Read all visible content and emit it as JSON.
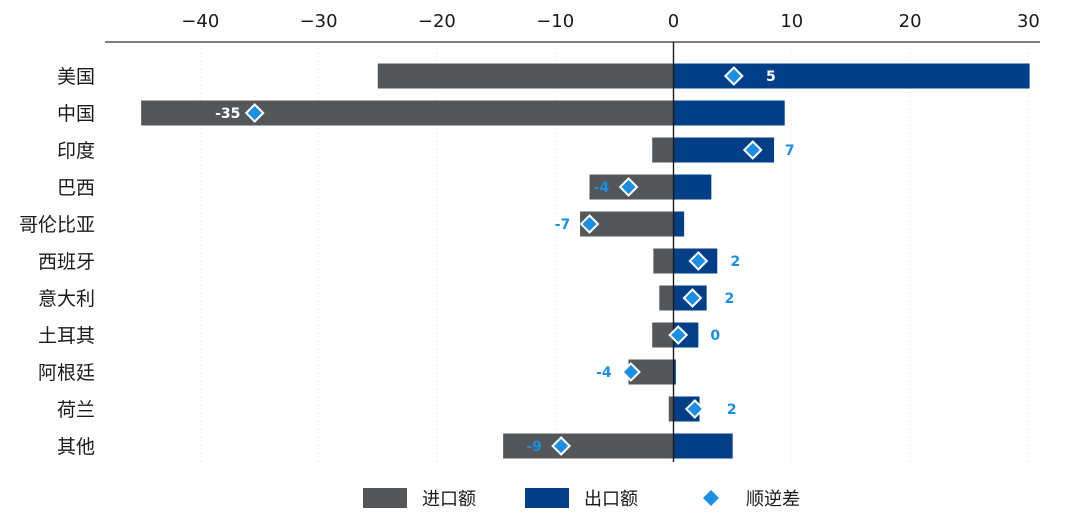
{
  "chart_data": {
    "type": "bar",
    "orientation": "horizontal",
    "title": "",
    "xlim": [
      -45,
      31
    ],
    "xticks": [
      -40,
      -30,
      -20,
      -10,
      0,
      10,
      20,
      30
    ],
    "xtick_labels": [
      "−40",
      "−30",
      "−20",
      "−10",
      "0",
      "10",
      "20",
      "30"
    ],
    "grid": true,
    "legend_position": "bottom",
    "categories": [
      "美国",
      "中国",
      "印度",
      "巴西",
      "哥伦比亚",
      "西班牙",
      "意大利",
      "土耳其",
      "阿根廷",
      "荷兰",
      "其他"
    ],
    "series": [
      {
        "name": "进口额",
        "kind": "bar",
        "color": "#53575a",
        "values": [
          -25,
          -45,
          -1.8,
          -7.1,
          -7.9,
          -1.7,
          -1.2,
          -1.8,
          -3.8,
          -0.4,
          -14.4
        ]
      },
      {
        "name": "出口额",
        "kind": "bar",
        "color": "#003f87",
        "values": [
          30.1,
          9.4,
          8.5,
          3.2,
          0.9,
          3.7,
          2.8,
          2.1,
          0.2,
          2.2,
          5.0
        ]
      },
      {
        "name": "顺逆差",
        "kind": "marker",
        "color": "#1a8fe3",
        "values": [
          5.1,
          -35.4,
          6.7,
          -3.8,
          -7.1,
          2.1,
          1.6,
          0.4,
          -3.6,
          1.8,
          -9.5
        ]
      }
    ],
    "data_labels": [
      "5",
      "-35",
      "7",
      "-4",
      "-7",
      "2",
      "2",
      "0",
      "-4",
      "2",
      "-9"
    ],
    "data_label_colors": [
      "#ffffff",
      "#ffffff",
      "#1a8fe3",
      "#1a8fe3",
      "#1a8fe3",
      "#1a8fe3",
      "#1a8fe3",
      "#1a8fe3",
      "#1a8fe3",
      "#1a8fe3",
      "#1a8fe3"
    ],
    "data_label_sides": [
      "right",
      "left",
      "right",
      "left",
      "left",
      "right",
      "right",
      "right",
      "left",
      "right",
      "left"
    ]
  }
}
